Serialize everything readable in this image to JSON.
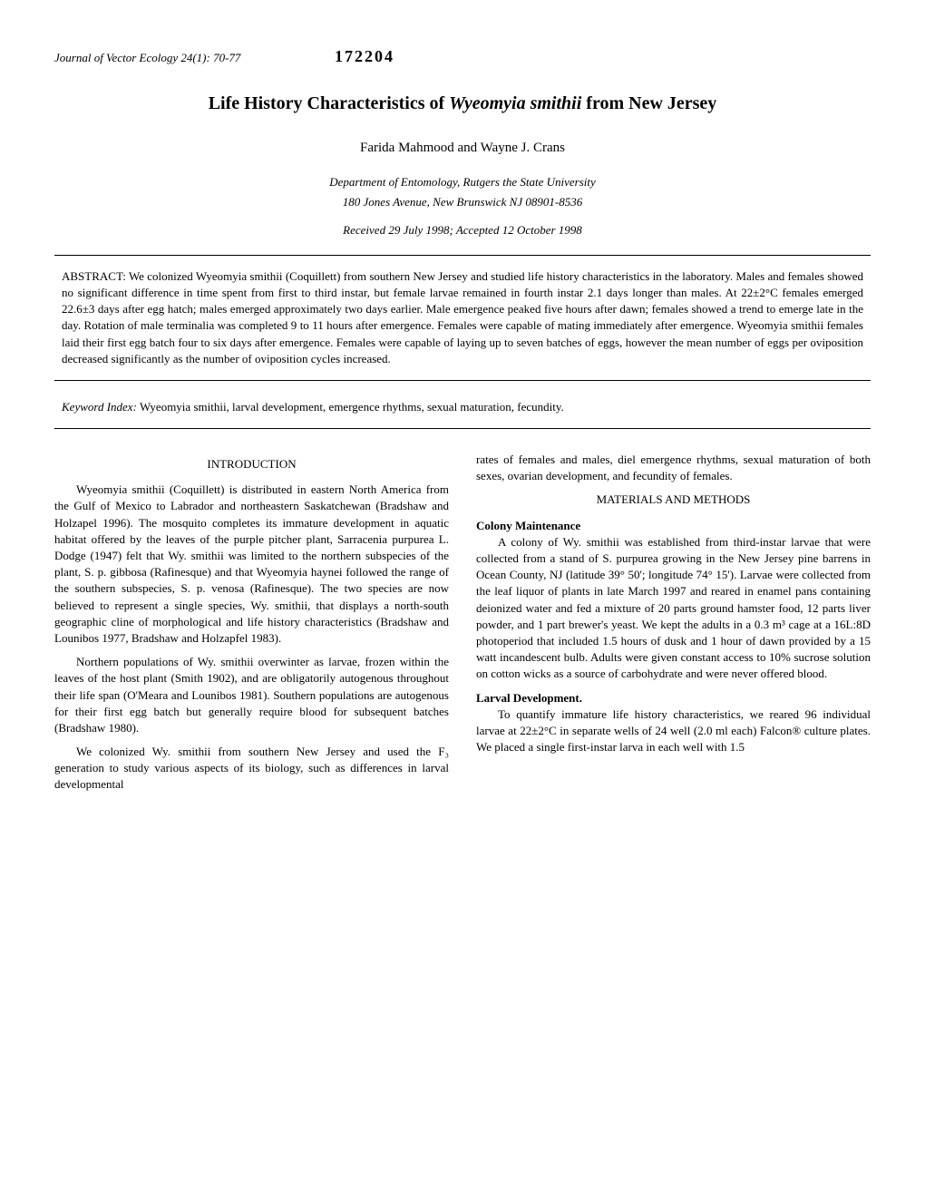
{
  "journal": "Journal of Vector Ecology 24(1): 70-77",
  "page_id": "172204",
  "title_main": "Life History Characteristics of ",
  "title_species": "Wyeomyia smithii",
  "title_tail": " from New Jersey",
  "authors": "Farida Mahmood and Wayne J. Crans",
  "affiliation_line1": "Department of Entomology, Rutgers the State University",
  "affiliation_line2": "180 Jones Avenue, New Brunswick NJ 08901-8536",
  "dates": "Received 29 July 1998; Accepted 12 October 1998",
  "abstract_label": "ABSTRACT: ",
  "abstract_text": "We colonized Wyeomyia smithii (Coquillett) from southern New Jersey and studied life history characteristics in the laboratory. Males and females showed no significant difference in time spent from first to third instar, but female larvae remained in fourth instar 2.1 days longer than males. At 22±2°C females emerged 22.6±3 days after egg hatch; males emerged approximately two days earlier. Male emergence peaked five hours after dawn; females showed a trend to emerge late in the day. Rotation of male terminalia was completed 9 to 11 hours after emergence. Females were capable of mating immediately after emergence. Wyeomyia smithii females laid their first egg batch four to six days after emergence. Females were capable of laying up to seven batches of eggs, however the mean number of eggs per oviposition decreased significantly as the number of oviposition cycles increased.",
  "keyword_label": "Keyword Index:",
  "keyword_text": "Wyeomyia smithii, larval development, emergence rhythms, sexual maturation, fecundity.",
  "introduction_heading": "INTRODUCTION",
  "intro_p1": "Wyeomyia smithii (Coquillett) is distributed in eastern North America from the Gulf of Mexico to Labrador and northeastern Saskatchewan (Bradshaw and Holzapel 1996). The mosquito completes its immature development in aquatic habitat offered by the leaves of the purple pitcher plant, Sarracenia purpurea L. Dodge (1947) felt that Wy. smithii was limited to the northern subspecies of the plant, S. p. gibbosa (Rafinesque) and that Wyeomyia haynei followed the range of the southern subspecies, S. p. venosa (Rafinesque). The two species are now believed to represent a single species, Wy. smithii, that displays a north-south geographic cline of morphological and life history characteristics (Bradshaw and Lounibos 1977, Bradshaw and Holzapfel 1983).",
  "intro_p2": "Northern populations of Wy. smithii overwinter as larvae, frozen within the leaves of the host plant (Smith 1902), and are obligatorily autogenous throughout their life span (O'Meara and Lounibos 1981). Southern populations are autogenous for their first egg batch but generally require blood for subsequent batches (Bradshaw 1980).",
  "intro_p3": "We colonized Wy. smithii from southern New Jersey and used the F₃ generation to study various aspects of its biology, such as differences in larval developmental",
  "col2_continuation": "rates of females and males, diel emergence rhythms, sexual maturation of both sexes, ovarian development, and fecundity of females.",
  "methods_heading": "MATERIALS AND METHODS",
  "colony_heading": "Colony Maintenance",
  "colony_text": "A colony of Wy. smithii was established from third-instar larvae that were collected from a stand of S. purpurea growing in the New Jersey pine barrens in Ocean County, NJ (latitude 39° 50'; longitude 74° 15'). Larvae were collected from the leaf liquor of plants in late March 1997 and reared in enamel pans containing deionized water and fed a mixture of 20 parts ground hamster food, 12 parts liver powder, and 1 part brewer's yeast. We kept the adults in a 0.3 m³ cage at a 16L:8D photoperiod that included 1.5 hours of dusk and 1 hour of dawn provided by a 15 watt incandescent bulb. Adults were given constant access to 10% sucrose solution on cotton wicks as a source of carbohydrate and were never offered blood.",
  "larval_heading": "Larval Development.",
  "larval_text": "To quantify immature life history characteristics, we reared 96 individual larvae at 22±2°C in separate wells of 24 well (2.0 ml each) Falcon® culture plates. We placed a single first-instar larva in each well with 1.5",
  "styling": {
    "body_font": "Times New Roman",
    "body_fontsize": 14,
    "title_fontsize": 20,
    "authors_fontsize": 15,
    "abstract_fontsize": 13,
    "body_color": "#000000",
    "background_color": "#ffffff",
    "border_color": "#000",
    "col_gap": 30
  }
}
